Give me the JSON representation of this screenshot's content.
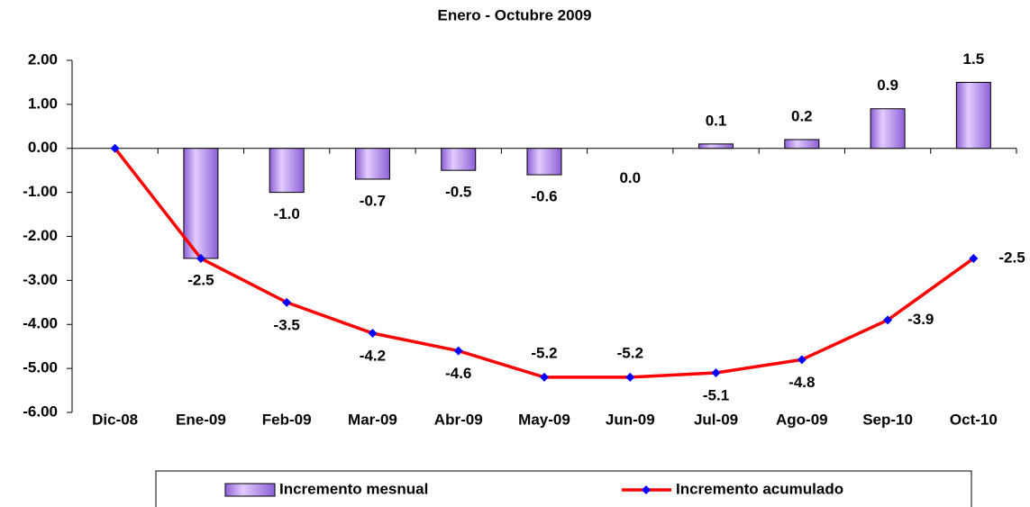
{
  "chart_data": {
    "type": "bar-line",
    "title": "Enero - Octubre 2009",
    "categories": [
      "Dic-08",
      "Ene-09",
      "Feb-09",
      "Mar-09",
      "Abr-09",
      "May-09",
      "Jun-09",
      "Jul-09",
      "Ago-09",
      "Sep-10",
      "Oct-10"
    ],
    "series": [
      {
        "name": "Incremento mesnual",
        "type": "bar",
        "color": "#b58cf2",
        "values": [
          null,
          -2.5,
          -1.0,
          -0.7,
          -0.5,
          -0.6,
          0.0,
          0.1,
          0.2,
          0.9,
          1.5
        ],
        "value_labels": [
          null,
          null,
          "-1.0",
          "-0.7",
          "-0.5",
          "-0.6",
          "0.0",
          "0.1",
          "0.2",
          "0.9",
          "1.5"
        ]
      },
      {
        "name": "Incremento acumulado",
        "type": "line",
        "color": "#ff0000",
        "marker_color": "#0000ff",
        "values": [
          0,
          -2.5,
          -3.5,
          -4.2,
          -4.6,
          -5.2,
          -5.2,
          -5.1,
          -4.8,
          -3.9,
          -2.5
        ],
        "value_labels": [
          null,
          "-2.5",
          "-3.5",
          "-4.2",
          "-4.6",
          "-5.2",
          "-5.2",
          "-5.1",
          "-4.8",
          "-3.9",
          "-2.5"
        ]
      }
    ],
    "ylim": [
      -6,
      2
    ],
    "yticks": [
      {
        "value": 2,
        "label": "2.00"
      },
      {
        "value": 1,
        "label": "1.00"
      },
      {
        "value": 0,
        "label": "0.00"
      },
      {
        "value": -1,
        "label": "-1.00"
      },
      {
        "value": -2,
        "label": "-2.00"
      },
      {
        "value": -3,
        "label": "-3.00"
      },
      {
        "value": -4,
        "label": "-4.00"
      },
      {
        "value": -5,
        "label": "-5.00"
      },
      {
        "value": -6,
        "label": "-6.00"
      }
    ],
    "legend": "bottom"
  }
}
